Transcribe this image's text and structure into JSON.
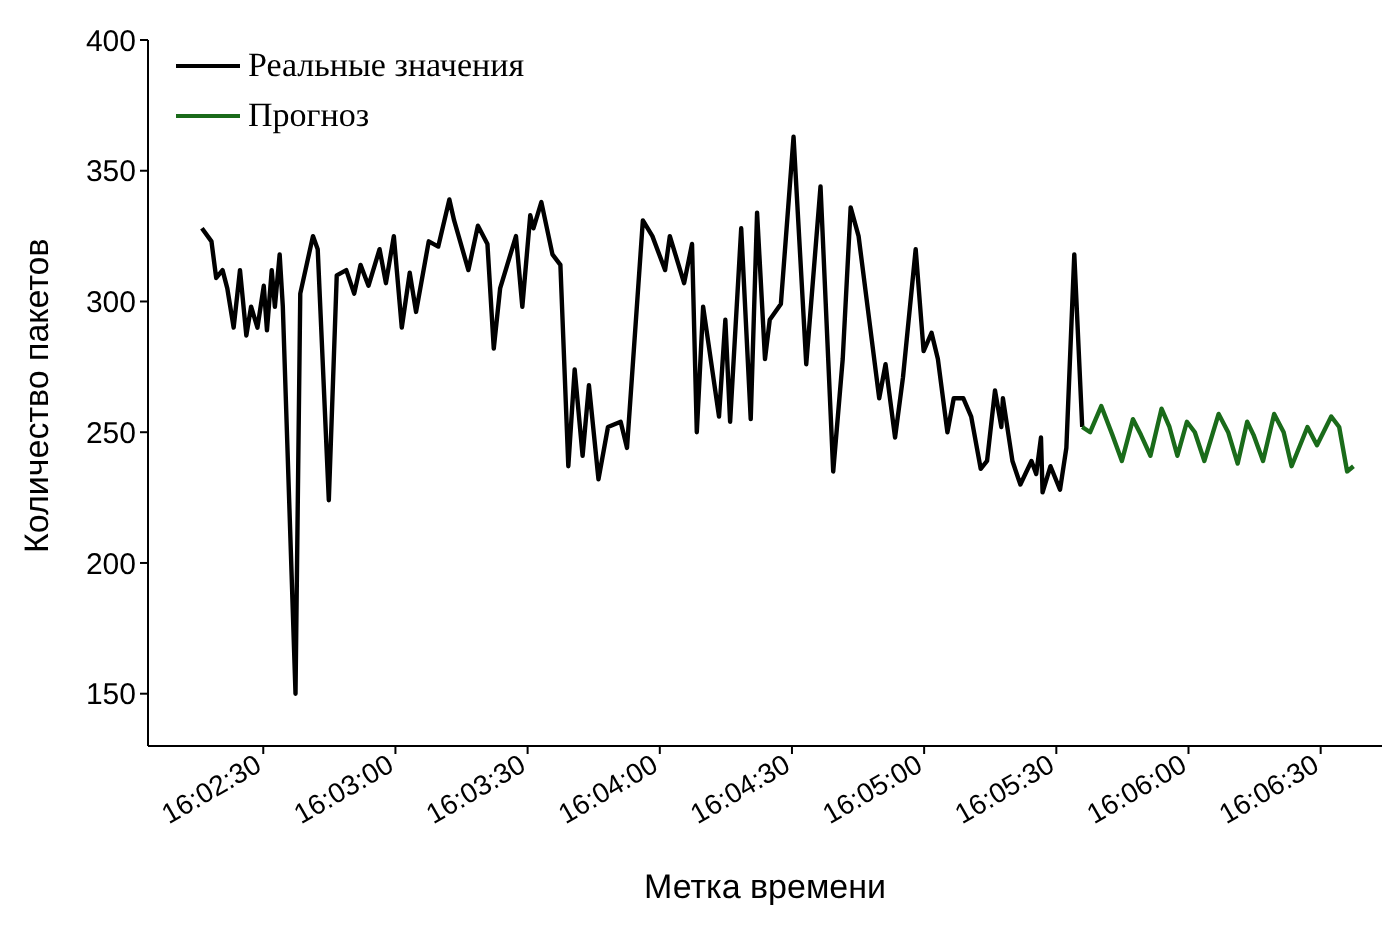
{
  "chart_data": {
    "type": "line",
    "xlabel": "Метка времени",
    "ylabel": "Количество пакетов",
    "xlim": [
      16.0344,
      16.1122
    ],
    "ylim": [
      130,
      400
    ],
    "xticks": [
      {
        "value": 16.041667,
        "label": "16:02:30"
      },
      {
        "value": 16.05,
        "label": "16:03:00"
      },
      {
        "value": 16.058333,
        "label": "16:03:30"
      },
      {
        "value": 16.066667,
        "label": "16:04:00"
      },
      {
        "value": 16.075,
        "label": "16:04:30"
      },
      {
        "value": 16.083333,
        "label": "16:05:00"
      },
      {
        "value": 16.091667,
        "label": "16:05:30"
      },
      {
        "value": 16.1,
        "label": "16:06:00"
      },
      {
        "value": 16.108333,
        "label": "16:06:30"
      }
    ],
    "yticks": [
      150,
      200,
      250,
      300,
      350,
      400
    ],
    "legend": "top left",
    "marker": "none",
    "line_style": "solid",
    "series": [
      {
        "name": "Реальные значения",
        "color": "#000000",
        "x": [
          16.0378,
          16.0384,
          16.0387,
          16.0391,
          16.0394,
          16.0398,
          16.0402,
          16.0406,
          16.0409,
          16.0413,
          16.0417,
          16.0419,
          16.0422,
          16.0424,
          16.0427,
          16.0429,
          16.0437,
          16.044,
          16.0448,
          16.0451,
          16.0458,
          16.0463,
          16.0469,
          16.0474,
          16.0478,
          16.0483,
          16.049,
          16.0494,
          16.0499,
          16.0504,
          16.0509,
          16.0513,
          16.0521,
          16.0527,
          16.0534,
          16.0537,
          16.0546,
          16.0552,
          16.0558,
          16.0562,
          16.0566,
          16.0576,
          16.058,
          16.0585,
          16.0587,
          16.0592,
          16.0599,
          16.0604,
          16.0609,
          16.0613,
          16.0618,
          16.0622,
          16.0628,
          16.0634,
          16.0642,
          16.0646,
          16.0656,
          16.0662,
          16.067,
          16.0673,
          16.0682,
          16.0687,
          16.069,
          16.0694,
          16.0704,
          16.0708,
          16.0711,
          16.0718,
          16.0724,
          16.0728,
          16.0733,
          16.0736,
          16.0743,
          16.0751,
          16.0759,
          16.0768,
          16.0776,
          16.0782,
          16.0787,
          16.0792,
          16.0805,
          16.0809,
          16.0815,
          16.082,
          16.0828,
          16.0833,
          16.0838,
          16.0842,
          16.0848,
          16.0852,
          16.0858,
          16.0863,
          16.0869,
          16.0873,
          16.0878,
          16.0882,
          16.0883,
          16.0889,
          16.0894,
          16.0901,
          16.0904,
          16.0907,
          16.0908,
          16.0913,
          16.0919,
          16.0923,
          16.0928,
          16.0933
        ],
        "values": [
          328,
          323,
          309,
          312,
          305,
          290,
          312,
          287,
          298,
          290,
          306,
          289,
          312,
          298,
          318,
          298,
          150,
          303,
          325,
          320,
          224,
          310,
          312,
          303,
          314,
          306,
          320,
          307,
          325,
          290,
          311,
          296,
          323,
          321,
          339,
          331,
          312,
          329,
          322,
          282,
          305,
          325,
          298,
          333,
          328,
          338,
          318,
          314,
          237,
          274,
          241,
          268,
          232,
          252,
          254,
          244,
          331,
          325,
          312,
          325,
          307,
          322,
          250,
          298,
          256,
          293,
          254,
          328,
          255,
          334,
          278,
          293,
          299,
          363,
          276,
          344,
          235,
          278,
          336,
          325,
          263,
          276,
          248,
          271,
          320,
          281,
          288,
          278,
          250,
          263,
          263,
          256,
          236,
          239,
          266,
          252,
          263,
          239,
          230,
          239,
          234,
          248,
          227,
          237,
          228,
          244,
          318,
          252
        ]
      },
      {
        "name": "Прогноз",
        "color": "#1a6b1a",
        "x": [
          16.0933,
          16.0938,
          16.0945,
          16.0952,
          16.0958,
          16.0965,
          16.097,
          16.0976,
          16.0983,
          16.0988,
          16.0993,
          16.0999,
          16.1004,
          16.101,
          16.1019,
          16.1025,
          16.1031,
          16.1037,
          16.1041,
          16.1047,
          16.1054,
          16.106,
          16.1065,
          16.1075,
          16.1081,
          16.109,
          16.1095,
          16.11,
          16.1104
        ],
        "values": [
          252,
          250,
          260,
          249,
          239,
          255,
          249,
          241,
          259,
          252,
          241,
          254,
          250,
          239,
          257,
          250,
          238,
          254,
          249,
          239,
          257,
          250,
          237,
          252,
          245,
          256,
          252,
          235,
          237
        ]
      }
    ]
  }
}
